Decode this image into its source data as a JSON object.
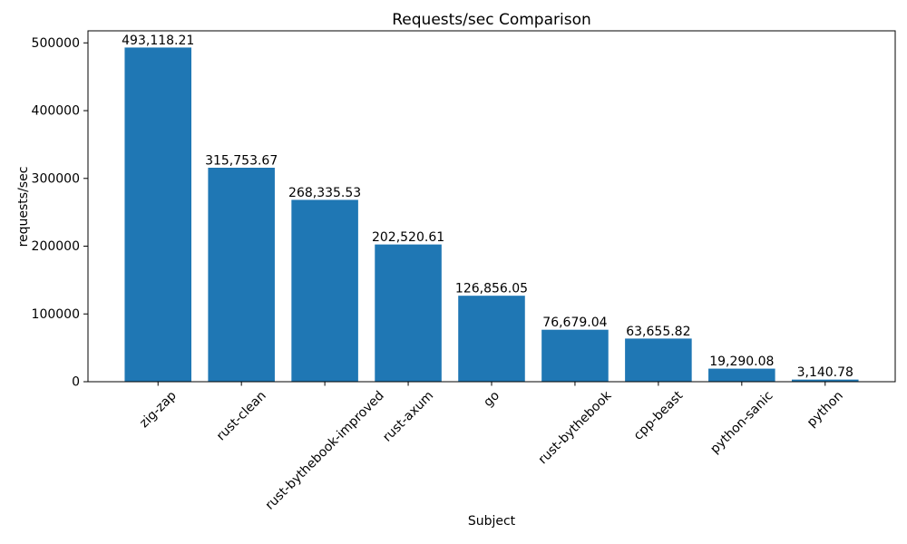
{
  "figure": {
    "background": "#ffffff"
  },
  "chart_data": {
    "type": "bar",
    "title": "Requests/sec Comparison",
    "xlabel": "Subject",
    "ylabel": "requests/sec",
    "categories": [
      "zig-zap",
      "rust-clean",
      "rust-bythebook-improved",
      "rust-axum",
      "go",
      "rust-bythebook",
      "cpp-beast",
      "python-sanic",
      "python"
    ],
    "values": [
      493118.21,
      315753.67,
      268335.53,
      202520.61,
      126856.05,
      76679.04,
      63655.82,
      19290.08,
      3140.78
    ],
    "value_labels": [
      "493,118.21",
      "315,753.67",
      "268,335.53",
      "202,520.61",
      "126,856.05",
      "76,679.04",
      "63,655.82",
      "19,290.08",
      "3,140.78"
    ],
    "yticks": [
      0,
      100000,
      200000,
      300000,
      400000,
      500000
    ],
    "ytick_labels": [
      "0",
      "100000",
      "200000",
      "300000",
      "400000",
      "500000"
    ],
    "ylim": [
      0,
      517774
    ],
    "x_tick_rotation": 45,
    "grid": false,
    "legend": false,
    "bar_color": "#1f77b4",
    "axis_color": "#000000",
    "text_color": "#000000"
  }
}
